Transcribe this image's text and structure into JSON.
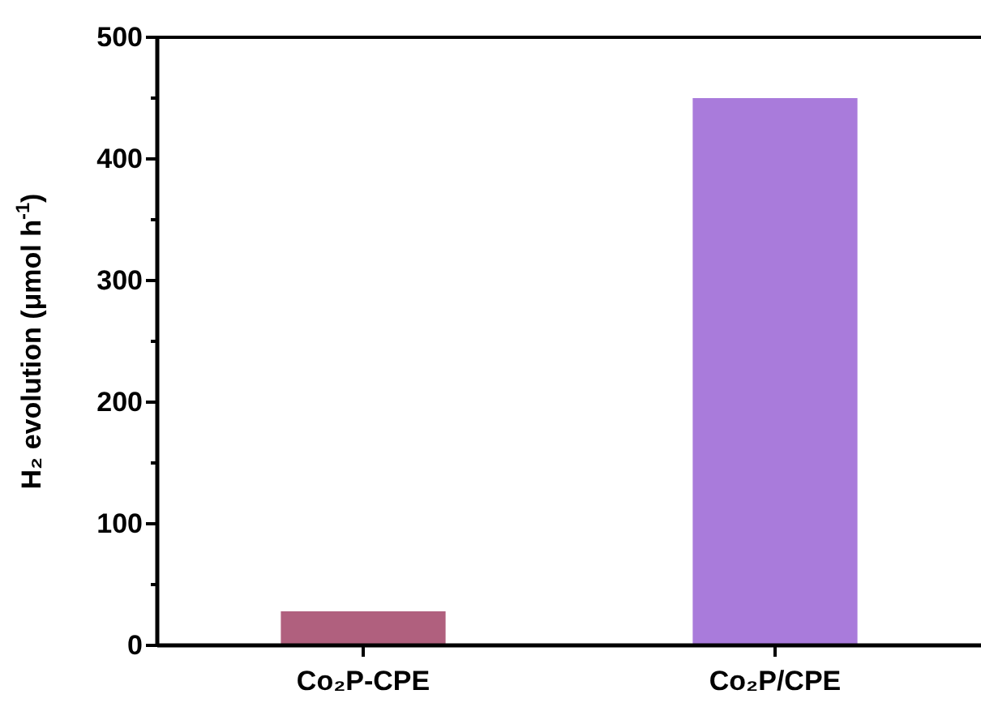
{
  "chart_data": {
    "type": "bar",
    "ylabel": "H₂ evolution (μmol h$^{-1}$)",
    "categories": [
      "Co₂P-CPE",
      "Co₂P/CPE"
    ],
    "values": [
      28,
      450
    ],
    "colors": [
      "#b0607e",
      "#a97bdb"
    ],
    "ylim": [
      0,
      500
    ],
    "yticks": [
      0,
      {
        "value": 50,
        "label": null
      },
      100,
      {
        "value": 150,
        "label": null
      },
      200,
      {
        "value": 250,
        "label": null
      },
      300,
      {
        "value": 350,
        "label": null
      },
      400,
      {
        "value": 450,
        "label": null
      },
      500
    ],
    "grid": false
  }
}
